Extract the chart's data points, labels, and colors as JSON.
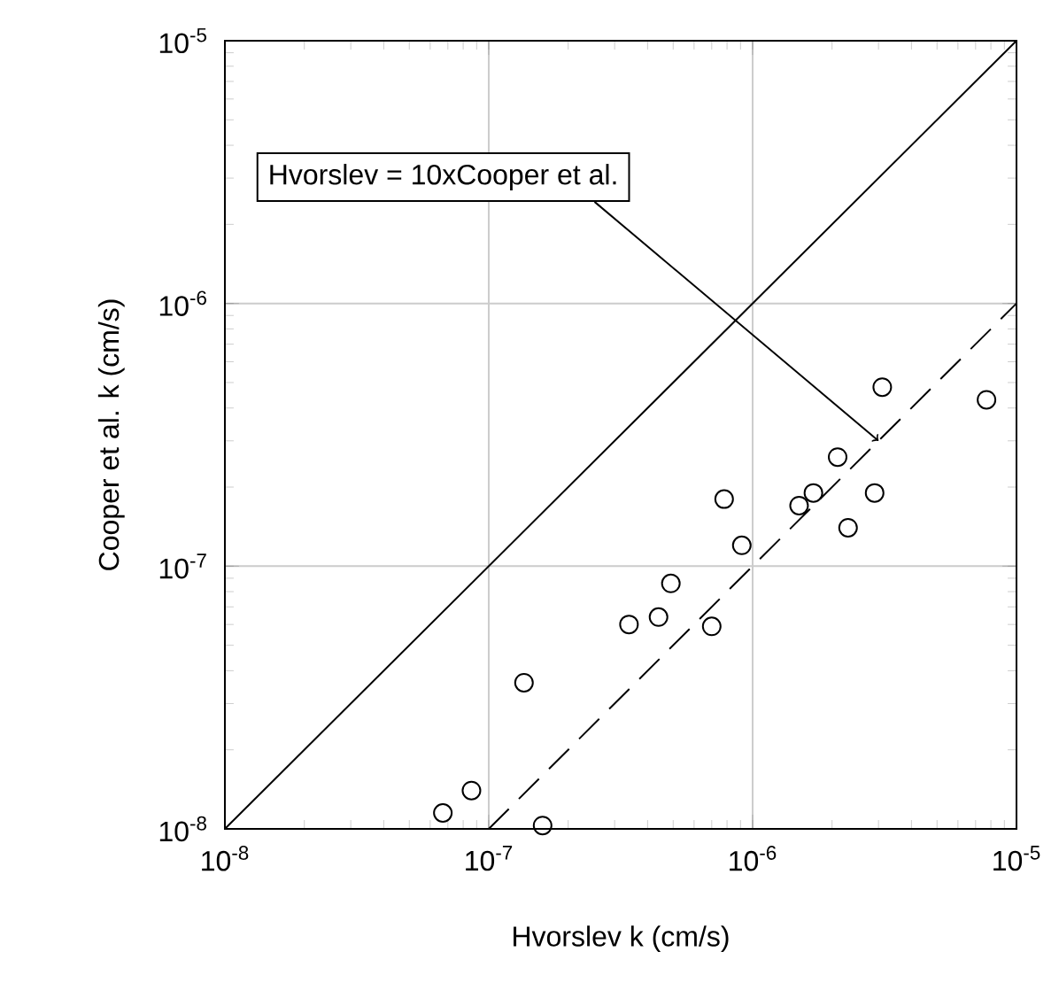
{
  "chart_data": {
    "type": "scatter",
    "xlabel": "Hvorslev k (cm/s)",
    "ylabel": "Cooper et al. k (cm/s)",
    "log": "xy",
    "grid": true,
    "xlim": [
      1e-08,
      1e-05
    ],
    "ylim": [
      1e-08,
      1e-05
    ],
    "xticks": [
      {
        "value": 1e-08,
        "label": "10$^{-8}$"
      },
      {
        "value": 1e-07,
        "label": "10$^{-7}$"
      },
      {
        "value": 1e-06,
        "label": "10$^{-6}$"
      },
      {
        "value": 1e-05,
        "label": "10$^{-5}$"
      }
    ],
    "yticks": [
      {
        "value": 1e-08,
        "label": "10$^{-8}$"
      },
      {
        "value": 1e-07,
        "label": "10$^{-7}$"
      },
      {
        "value": 1e-06,
        "label": "10$^{-6}$"
      },
      {
        "value": 1e-05,
        "label": "10$^{-5}$"
      }
    ],
    "series": [
      {
        "color": "#000000",
        "marker": "circle",
        "x": [
          6.7e-08,
          8.6e-08,
          1.36e-07,
          1.6e-07,
          3.4e-07,
          4.4e-07,
          4.9e-07,
          7e-07,
          7.8e-07,
          9.1e-07,
          1.5e-06,
          1.7e-06,
          2.3e-06,
          2.1e-06,
          2.9e-06,
          3.1e-06,
          7.7e-06
        ],
        "values": [
          1.15e-08,
          1.4e-08,
          3.6e-08,
          1.03e-08,
          6e-08,
          6.4e-08,
          8.6e-08,
          5.9e-08,
          1.8e-07,
          1.2e-07,
          1.7e-07,
          1.9e-07,
          1.4e-07,
          2.6e-07,
          1.9e-07,
          4.8e-07,
          4.3e-07
        ]
      },
      {
        "type": "line",
        "color": "#000000",
        "marker": "none",
        "line_style": "solid",
        "x": [
          1e-08,
          1e-05
        ],
        "values": [
          1e-08,
          1e-05
        ]
      },
      {
        "type": "line",
        "color": "#000000",
        "marker": "none",
        "line_style": "dashed",
        "x": [
          1e-07,
          1e-05
        ],
        "values": [
          1e-08,
          1e-06
        ]
      }
    ],
    "annotations": [
      {
        "text": "Hvorslev = 10xCooper et al.",
        "x": 3e-06,
        "y": 3e-07
      }
    ]
  }
}
